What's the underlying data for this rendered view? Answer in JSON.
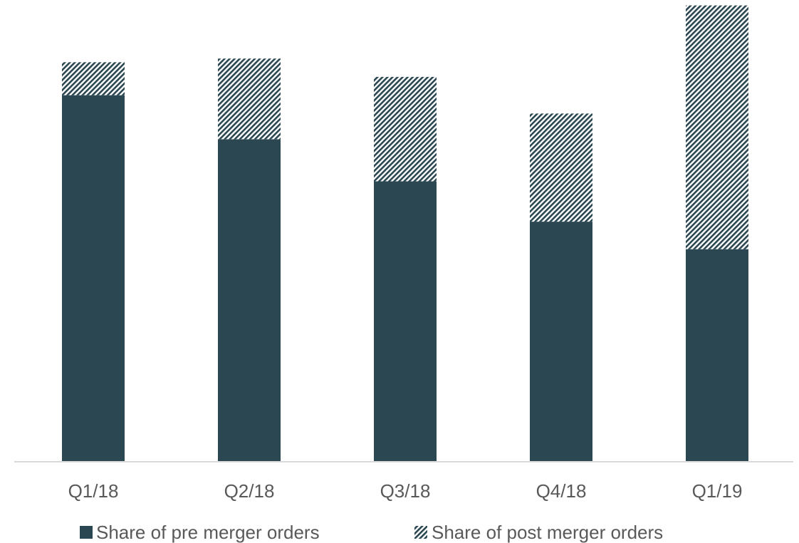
{
  "chart_data": {
    "type": "bar",
    "stacked": true,
    "categories": [
      "Q1/18",
      "Q2/18",
      "Q3/18",
      "Q4/18",
      "Q1/19"
    ],
    "series": [
      {
        "name": "Share of pre merger orders",
        "values": [
          100,
          88,
          76.5,
          65.5,
          58
        ],
        "color": "#2b4752",
        "pattern": "solid"
      },
      {
        "name": "Share of post merger orders",
        "values": [
          9,
          22,
          28.5,
          29.5,
          66.5
        ],
        "color": "#2b4752",
        "pattern": "diagonal-hatch"
      }
    ],
    "ylim": [
      0,
      125
    ],
    "grid": false,
    "legend": "bottom"
  }
}
